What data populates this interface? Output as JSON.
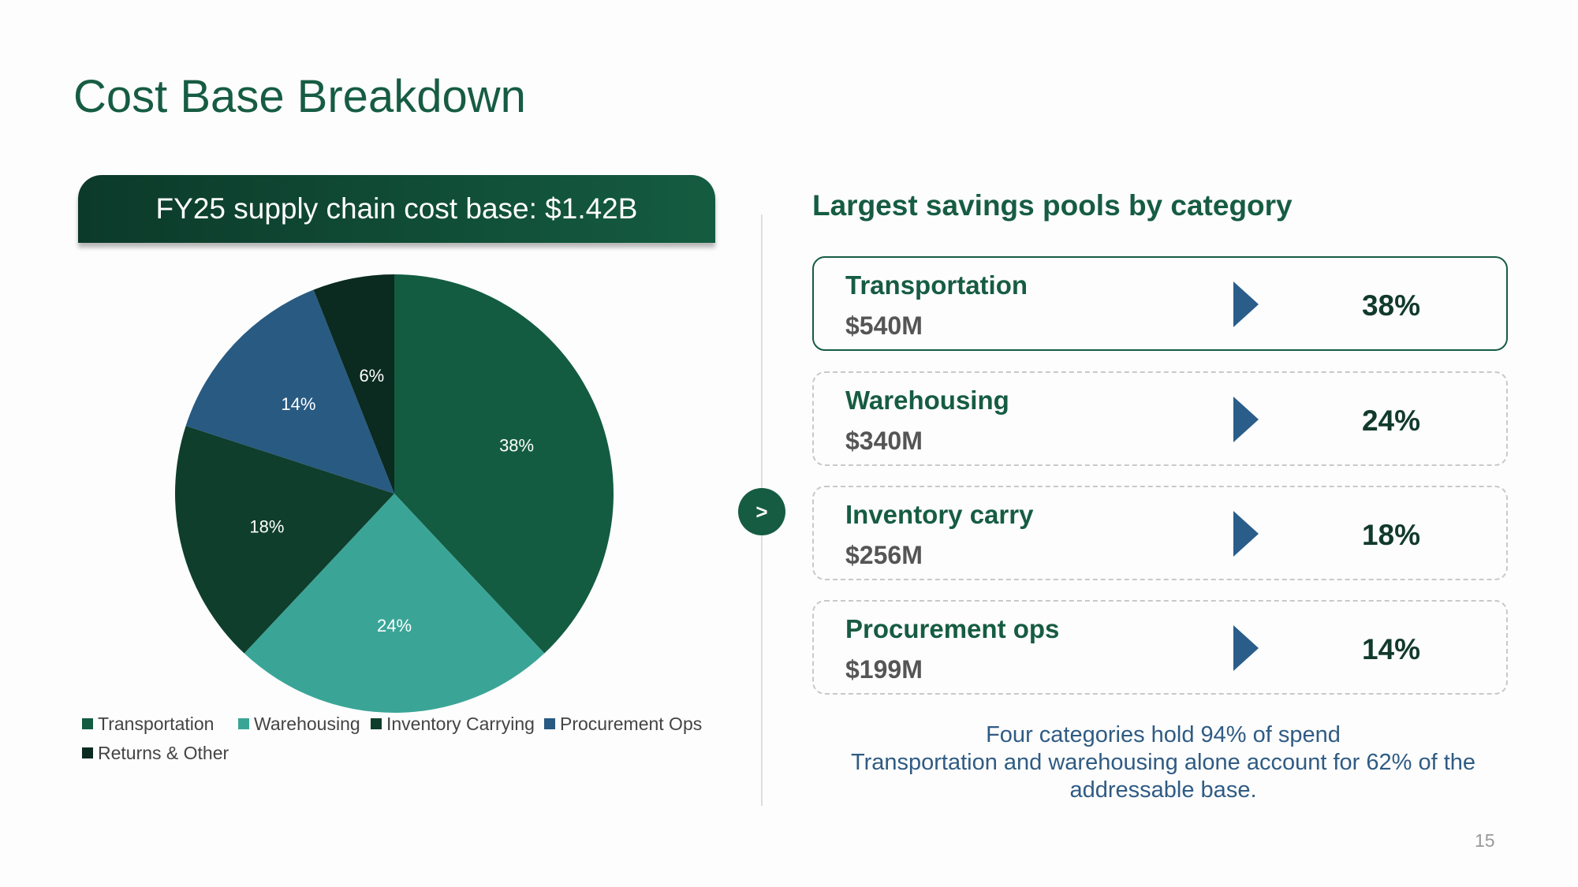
{
  "slide": {
    "title": "Cost Base Breakdown",
    "page_number": "15"
  },
  "banner": {
    "text": "FY25 supply chain cost base: $1.42B"
  },
  "arrow_glyph": ">",
  "pools": {
    "heading": "Largest savings pools by category",
    "cards": [
      {
        "name": "Transportation",
        "amount": "$540M",
        "percent": "38%",
        "highlighted": true
      },
      {
        "name": "Warehousing",
        "amount": "$340M",
        "percent": "24%",
        "highlighted": false
      },
      {
        "name": "Inventory carry",
        "amount": "$256M",
        "percent": "18%",
        "highlighted": false
      },
      {
        "name": "Procurement ops",
        "amount": "$199M",
        "percent": "14%",
        "highlighted": false
      }
    ],
    "chevron_color": "#2a5d8a"
  },
  "summary": {
    "line1": "Four categories hold 94% of spend",
    "line2": "Transportation and warehousing alone account for 62% of the addressable base."
  },
  "chart_data": {
    "type": "pie",
    "start_angle": "12 o'clock, clockwise",
    "categories": [
      "Transportation",
      "Warehousing",
      "Inventory Carrying",
      "Procurement Ops",
      "Returns & Other"
    ],
    "values": [
      38,
      24,
      18,
      14,
      6
    ],
    "data_labels": [
      "38%",
      "24%",
      "18%",
      "14%",
      "6%"
    ],
    "colors": [
      "#135c42",
      "#3aa597",
      "#0f3e2c",
      "#285a82",
      "#0b2a20"
    ],
    "legend_position": "bottom",
    "label_color": "#ffffff"
  }
}
